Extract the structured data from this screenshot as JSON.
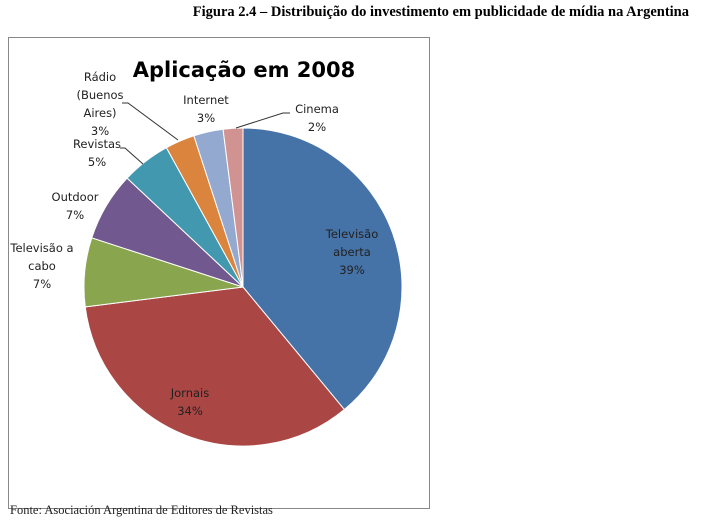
{
  "caption": "Figura 2.4 – Distribuição do investimento em publicidade de mídia na Argentina",
  "source": "Fonte: Asociación Argentina de Editores de Revistas",
  "chart_data": {
    "type": "pie",
    "title": "Aplicação em 2008",
    "categories": [
      "Televisão aberta",
      "Jornais",
      "Televisão a cabo",
      "Outdoor",
      "Revistas",
      "Rádio (Buenos Aires)",
      "Internet",
      "Cinema"
    ],
    "values": [
      39,
      34,
      7,
      7,
      5,
      3,
      3,
      2
    ],
    "value_labels": [
      "39%",
      "34%",
      "7%",
      "7%",
      "5%",
      "3%",
      "3%",
      "2%"
    ],
    "label_lines": [
      [
        "Televisão",
        "aberta"
      ],
      [
        "Jornais"
      ],
      [
        "Televisão a",
        "cabo"
      ],
      [
        "Outdoor"
      ],
      [
        "Revistas"
      ],
      [
        "Rádio",
        "(Buenos",
        "Aires)"
      ],
      [
        "Internet"
      ],
      [
        "Cinema"
      ]
    ],
    "colors": [
      "#4572A7",
      "#AA4643",
      "#89A54E",
      "#71588F",
      "#4198AF",
      "#DB843D",
      "#93A9CF",
      "#D19392"
    ],
    "start": "12 o'clock, clockwise"
  }
}
